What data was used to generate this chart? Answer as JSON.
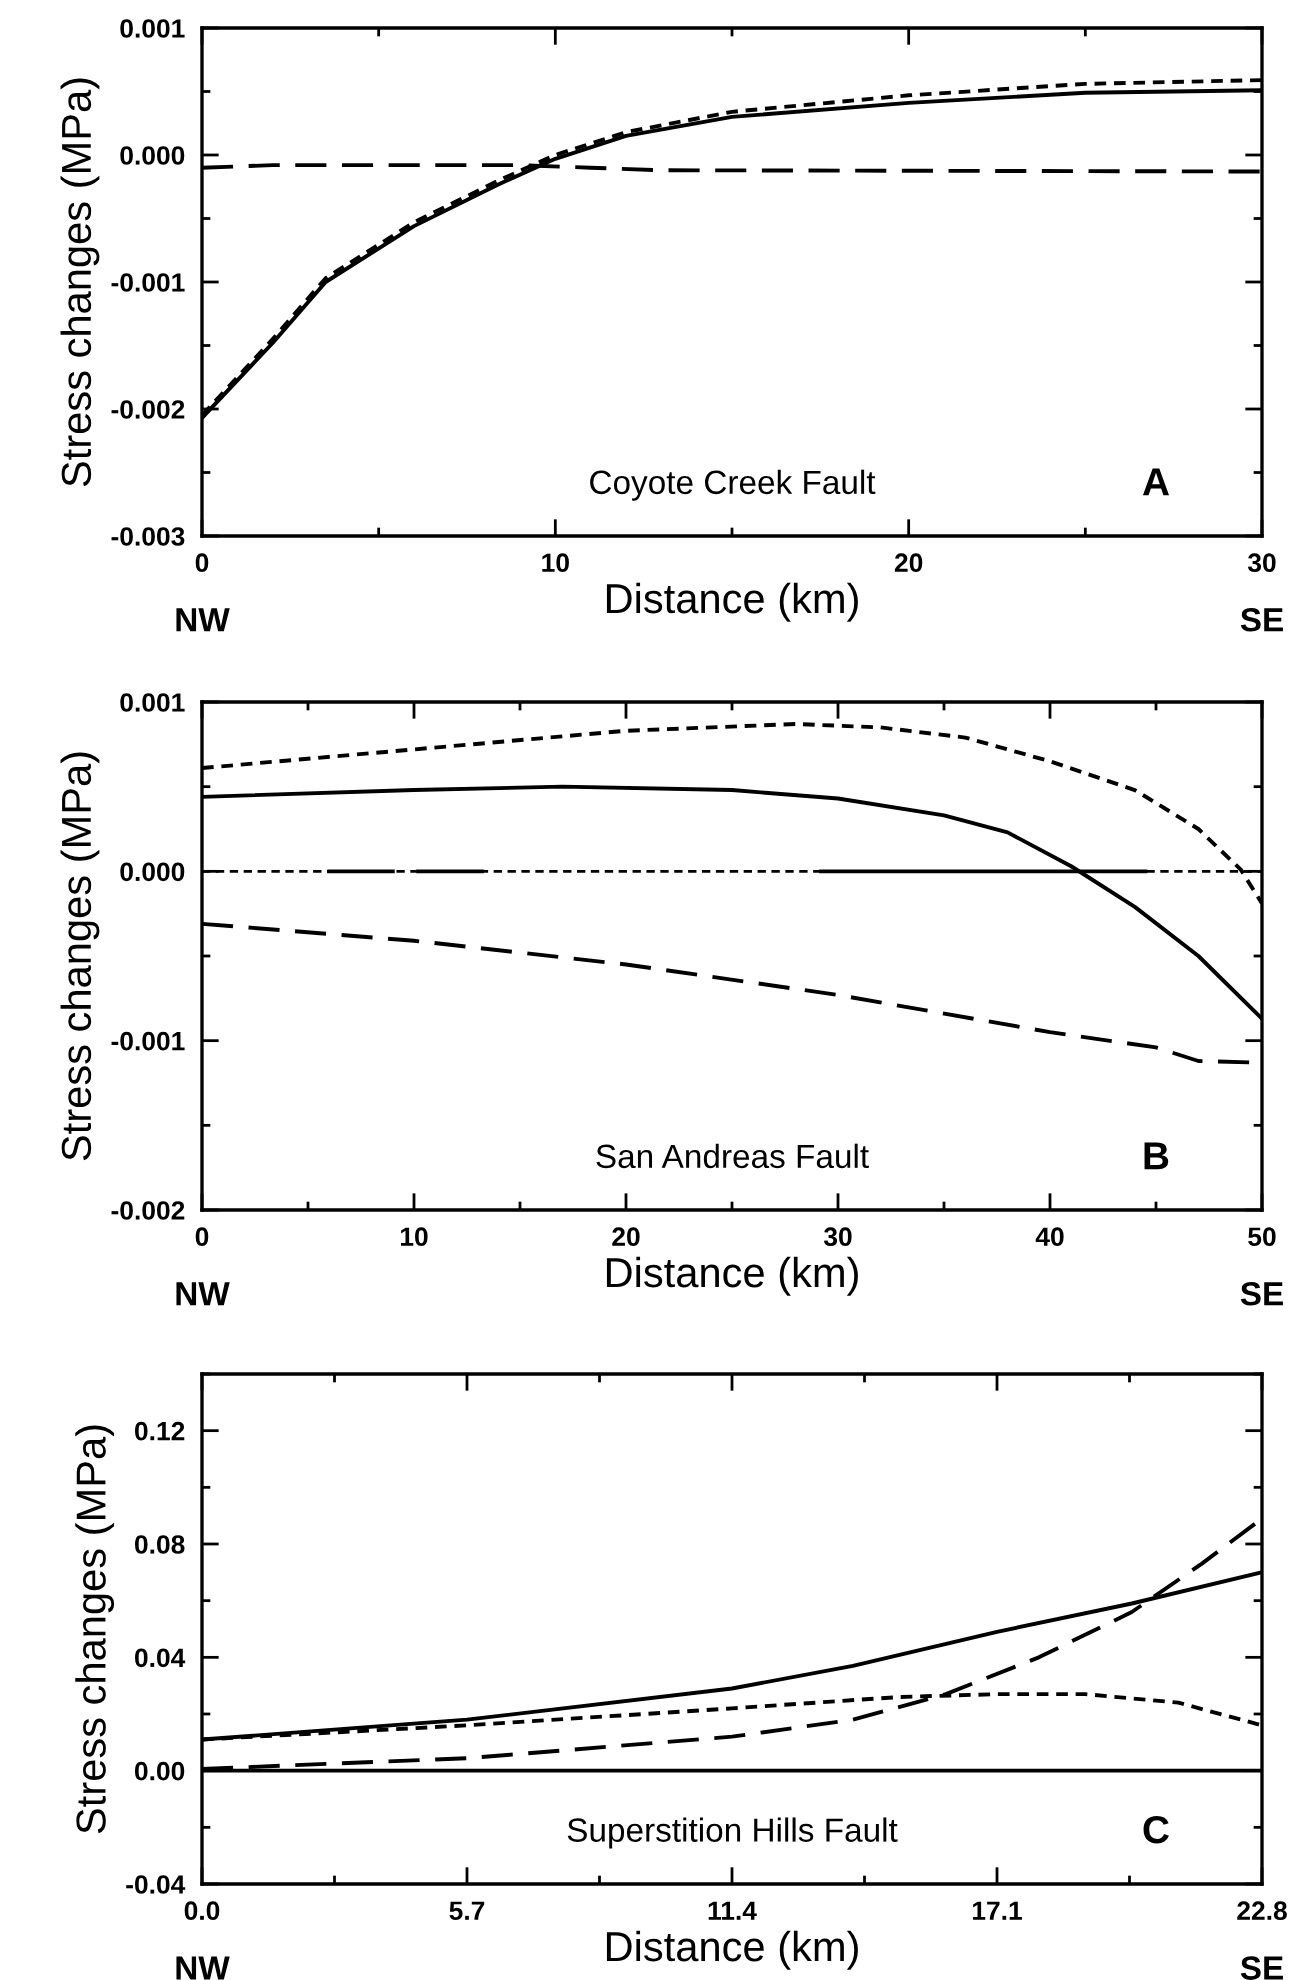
{
  "chart_data": [
    {
      "type": "line",
      "title": "Coyote Creek Fault",
      "xlabel": "Distance (km)",
      "ylabel": "Stress changes (MPa)",
      "annotations": [
        "A",
        "NW",
        "SE"
      ],
      "xlim": [
        0,
        30
      ],
      "xticks": [
        0,
        10,
        20,
        30
      ],
      "ylim": [
        -0.003,
        0.001
      ],
      "yticks": [
        {
          "value": -0.003,
          "label": "-0.003"
        },
        {
          "value": -0.002,
          "label": "-0.002"
        },
        {
          "value": -0.001,
          "label": "-0.001"
        },
        {
          "value": 0,
          "label": "0.000"
        },
        {
          "value": 0.001,
          "label": "0.001"
        }
      ],
      "grid": false,
      "legend": false,
      "series": [
        {
          "color": "#000000",
          "line_style": "solid",
          "x": [
            0,
            2,
            3.5,
            6,
            8.4,
            10,
            12,
            15,
            20,
            25,
            30
          ],
          "values": [
            -0.00207,
            -0.00148,
            -0.001,
            -0.00056,
            -0.00023,
            -3e-05,
            0.00015,
            0.0003,
            0.00041,
            0.00049,
            0.00051
          ]
        },
        {
          "color": "#000000",
          "line_style": "dotted",
          "x": [
            0,
            2,
            3.5,
            6,
            8.4,
            10,
            12,
            15,
            20,
            25,
            30
          ],
          "values": [
            -0.00205,
            -0.00145,
            -0.00097,
            -0.00053,
            -0.0002,
            0.0,
            0.00018,
            0.00034,
            0.00047,
            0.00056,
            0.00059
          ]
        },
        {
          "color": "#000000",
          "line_style": "dashed",
          "x": [
            0,
            2,
            9,
            11,
            13,
            30
          ],
          "values": [
            -0.0001,
            -8e-05,
            -8e-05,
            -0.0001,
            -0.00012,
            -0.00013
          ]
        }
      ]
    },
    {
      "type": "line",
      "title": "San Andreas Fault",
      "xlabel": "Distance (km)",
      "ylabel": "Stress changes (MPa)",
      "annotations": [
        "B",
        "NW",
        "SE"
      ],
      "xlim": [
        0,
        50
      ],
      "xticks": [
        0,
        10,
        20,
        30,
        40,
        50
      ],
      "ylim": [
        -0.002,
        0.001
      ],
      "yticks": [
        {
          "value": -0.002,
          "label": "-0.002"
        },
        {
          "value": -0.001,
          "label": "-0.001"
        },
        {
          "value": 0,
          "label": "0.000"
        },
        {
          "value": 0.001,
          "label": "0.001"
        }
      ],
      "grid": false,
      "legend": false,
      "ref_lines": [
        {
          "axis": "y",
          "value": 0,
          "line_style": "dotted",
          "color": "#000000"
        }
      ],
      "series": [
        {
          "color": "#000000",
          "line_style": "solid",
          "x": [
            0,
            10,
            17,
            25,
            30,
            35,
            38,
            41,
            44,
            47,
            50
          ],
          "values": [
            0.00044,
            0.00048,
            0.0005,
            0.00048,
            0.00043,
            0.00033,
            0.00023,
            3e-05,
            -0.00021,
            -0.0005,
            -0.00087
          ]
        },
        {
          "color": "#000000",
          "line_style": "dotted",
          "x": [
            0,
            10,
            20,
            28,
            32,
            36,
            40,
            44,
            47,
            49,
            50
          ],
          "values": [
            0.00061,
            0.00072,
            0.00083,
            0.00087,
            0.00085,
            0.00079,
            0.00065,
            0.00048,
            0.00025,
            1e-05,
            -0.00019
          ]
        },
        {
          "color": "#000000",
          "line_style": "dashed",
          "x": [
            0,
            10,
            20,
            30,
            40,
            45,
            47,
            50
          ],
          "values": [
            -0.00031,
            -0.00041,
            -0.00055,
            -0.00073,
            -0.00095,
            -0.00104,
            -0.00112,
            -0.00113
          ]
        },
        {
          "color": "#000000",
          "line_style": "solid",
          "x": [
            6,
            9,
            9.6,
            10.2,
            13.2,
            21,
            29.2,
            44.5
          ],
          "values": [
            0,
            0,
            null,
            0,
            0,
            null,
            0,
            0
          ]
        }
      ]
    },
    {
      "type": "line",
      "title": "Superstition Hills Fault",
      "xlabel": "Distance (km)",
      "ylabel": "Stress changes (MPa)",
      "annotations": [
        "C",
        "NW",
        "SE"
      ],
      "xlim": [
        0,
        22.8
      ],
      "xticks": [
        {
          "value": 0,
          "label": "0.0"
        },
        5.7,
        11.4,
        17.1,
        22.8
      ],
      "ylim": [
        -0.04,
        0.14
      ],
      "yticks": [
        -0.04,
        {
          "value": 0,
          "label": "0.00"
        },
        0.04,
        0.08,
        0.12
      ],
      "grid": false,
      "legend": false,
      "series": [
        {
          "color": "#000000",
          "line_style": "solid",
          "x": [
            0,
            5.7,
            11.4,
            14,
            17.1,
            20,
            22.8
          ],
          "values": [
            0.011,
            0.018,
            0.029,
            0.037,
            0.049,
            0.059,
            0.07
          ]
        },
        {
          "color": "#000000",
          "line_style": "dotted",
          "x": [
            0,
            5.7,
            11.4,
            15,
            17.1,
            19,
            21,
            22.8
          ],
          "values": [
            0.011,
            0.016,
            0.022,
            0.026,
            0.027,
            0.027,
            0.024,
            0.016
          ]
        },
        {
          "color": "#000000",
          "line_style": "dashed",
          "x": [
            0,
            5.7,
            11.4,
            14,
            16,
            18,
            20,
            21.5,
            22.8
          ],
          "values": [
            0.0006,
            0.0044,
            0.012,
            0.018,
            0.027,
            0.04,
            0.056,
            0.073,
            0.089
          ]
        },
        {
          "color": "#000000",
          "line_style": "solid",
          "x": [
            0,
            22.8
          ],
          "values": [
            0,
            0
          ]
        }
      ]
    }
  ]
}
